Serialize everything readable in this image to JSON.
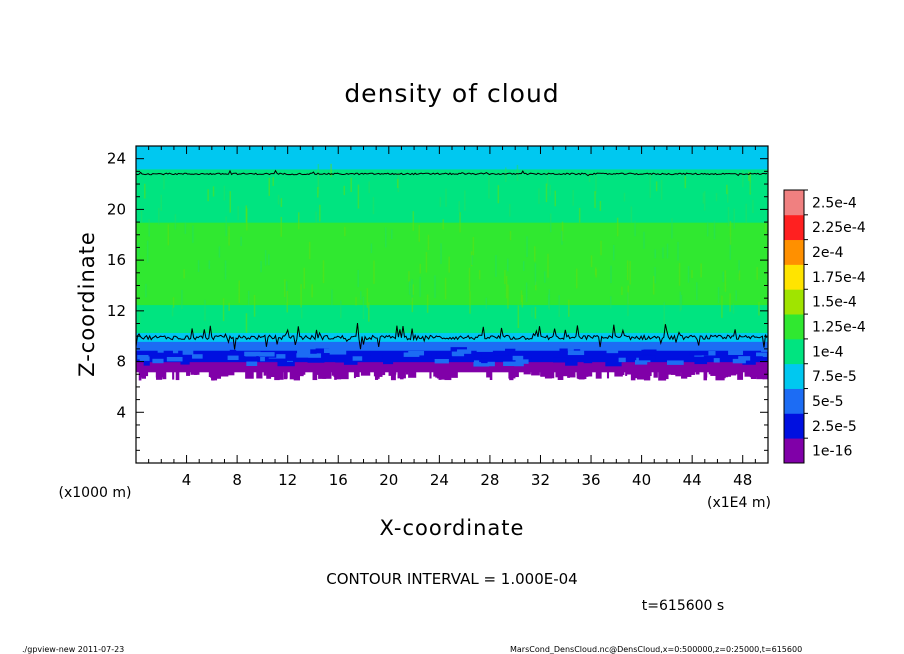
{
  "chart_data": {
    "type": "heatmap",
    "title": "density of cloud",
    "xlabel": "X-coordinate",
    "ylabel": "Z-coordinate",
    "x_unit_note": "(x1E4 m)",
    "y_unit_note": "(x1000 m)",
    "xlim": [
      0,
      50
    ],
    "ylim": [
      0,
      25
    ],
    "xticks": [
      4,
      8,
      12,
      16,
      20,
      24,
      28,
      32,
      36,
      40,
      44,
      48
    ],
    "yticks": [
      4,
      8,
      12,
      16,
      20,
      24
    ],
    "colorbar": {
      "labels": [
        "2.5e-4",
        "2.25e-4",
        "2e-4",
        "1.75e-4",
        "1.5e-4",
        "1.25e-4",
        "1e-4",
        "7.5e-5",
        "5e-5",
        "2.5e-5",
        "1e-16"
      ],
      "levels": [
        1e-16,
        2.5e-05,
        5e-05,
        7.5e-05,
        0.0001,
        0.000125,
        0.00015,
        0.000175,
        0.0002,
        0.000225,
        0.00025
      ],
      "colors": [
        "#8000a8",
        "#0010e0",
        "#1c6cf4",
        "#00c8f0",
        "#00e480",
        "#30e830",
        "#a0e400",
        "#ffe400",
        "#ff9000",
        "#ff2020",
        "#f08080"
      ]
    },
    "profile": [
      {
        "z": 0,
        "value": 0
      },
      {
        "z": 7.2,
        "value": 0
      },
      {
        "z": 7.5,
        "value": 5e-06
      },
      {
        "z": 8.0,
        "value": 2.5e-05
      },
      {
        "z": 8.6,
        "value": 4e-05
      },
      {
        "z": 9.2,
        "value": 6e-05
      },
      {
        "z": 9.8,
        "value": 8.5e-05
      },
      {
        "z": 10.5,
        "value": 0.000105
      },
      {
        "z": 13,
        "value": 0.00013
      },
      {
        "z": 15,
        "value": 0.000135
      },
      {
        "z": 18,
        "value": 0.00013
      },
      {
        "z": 21,
        "value": 0.000115
      },
      {
        "z": 23,
        "value": 0.000102
      },
      {
        "z": 24,
        "value": 9.3e-05
      },
      {
        "z": 25,
        "value": 8.8e-05
      }
    ],
    "contour_levels": [
      0.0001
    ],
    "contour_interval_text": "CONTOUR INTERVAL = 1.000E-04",
    "time_text": "t=615600 s"
  },
  "footer": {
    "left": "./gpview-new   2011-07-23",
    "right": "MarsCond_DensCloud.nc@DensCloud,x=0:500000,z=0:25000,t=615600"
  },
  "colors": {
    "axis": "#000000",
    "contour": "#000000",
    "background": "#ffffff"
  }
}
